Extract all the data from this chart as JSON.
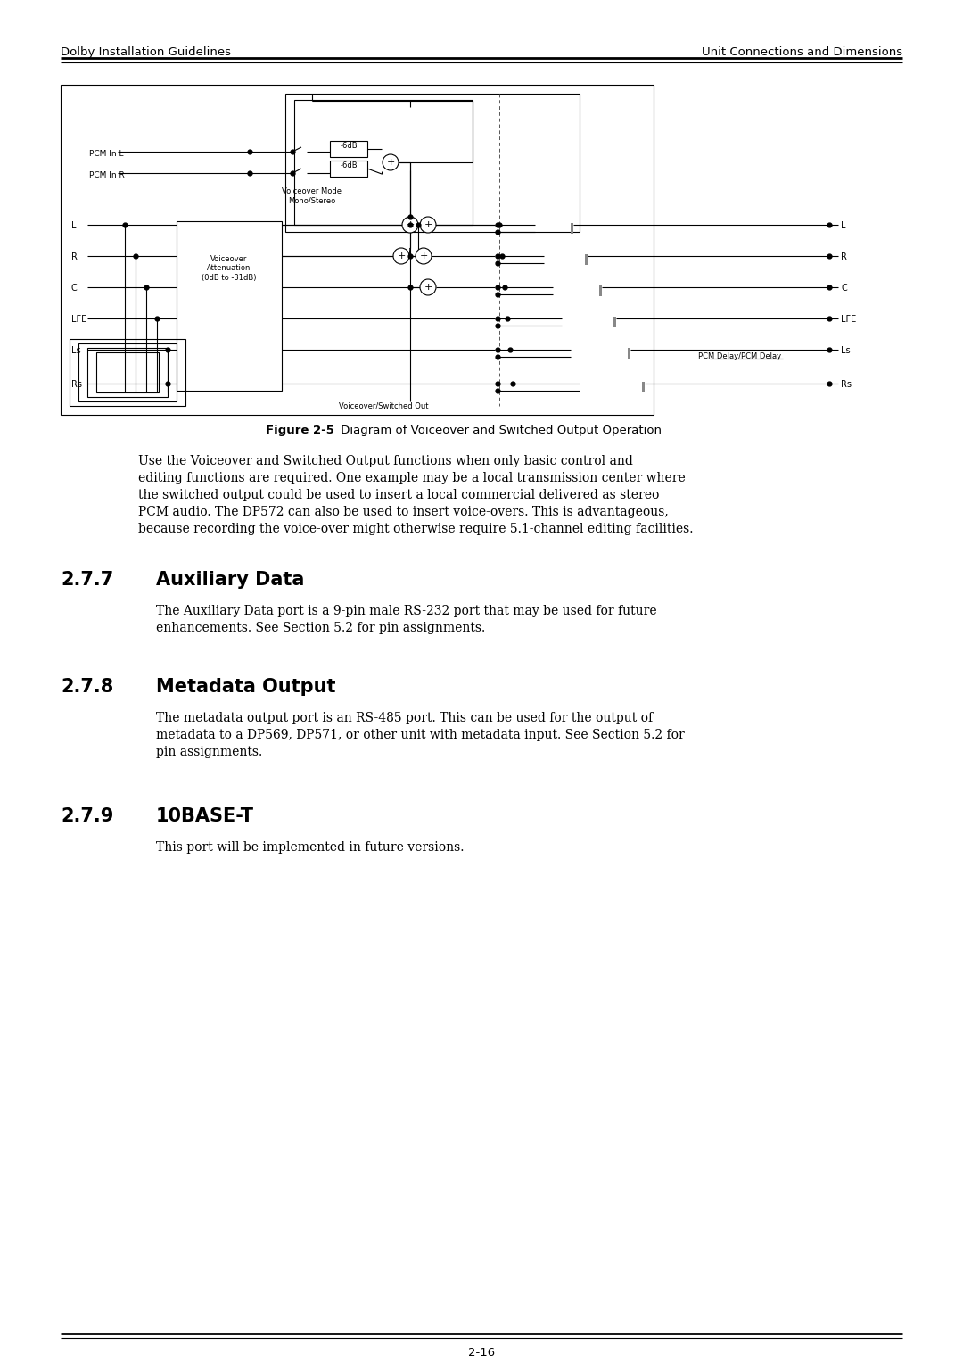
{
  "page_header_left": "Dolby Installation Guidelines",
  "page_header_right": "Unit Connections and Dimensions",
  "figure_caption_bold": "Figure 2-5",
  "figure_caption_rest": " Diagram of Voiceover and Switched Output Operation",
  "body_text_lines": [
    "Use the Voiceover and Switched Output functions when only basic control and",
    "editing functions are required. One example may be a local transmission center where",
    "the switched output could be used to insert a local commercial delivered as stereo",
    "PCM audio. The DP572 can also be used to insert voice-overs. This is advantageous,",
    "because recording the voice-over might otherwise require 5.1-channel editing facilities."
  ],
  "section_277_num": "2.7.7",
  "section_277_title": "Auxiliary Data",
  "section_277_text_lines": [
    "The Auxiliary Data port is a 9-pin male RS-232 port that may be used for future",
    "enhancements. See Section 5.2 for pin assignments."
  ],
  "section_278_num": "2.7.8",
  "section_278_title": "Metadata Output",
  "section_278_text_lines": [
    "The metadata output port is an RS-485 port. This can be used for the output of",
    "metadata to a DP569, DP571, or other unit with metadata input. See Section 5.2 for",
    "pin assignments."
  ],
  "section_279_num": "2.7.9",
  "section_279_title": "10BASE-T",
  "section_279_text": "This port will be implemented in future versions.",
  "page_number": "2-16",
  "bg_color": "#ffffff"
}
